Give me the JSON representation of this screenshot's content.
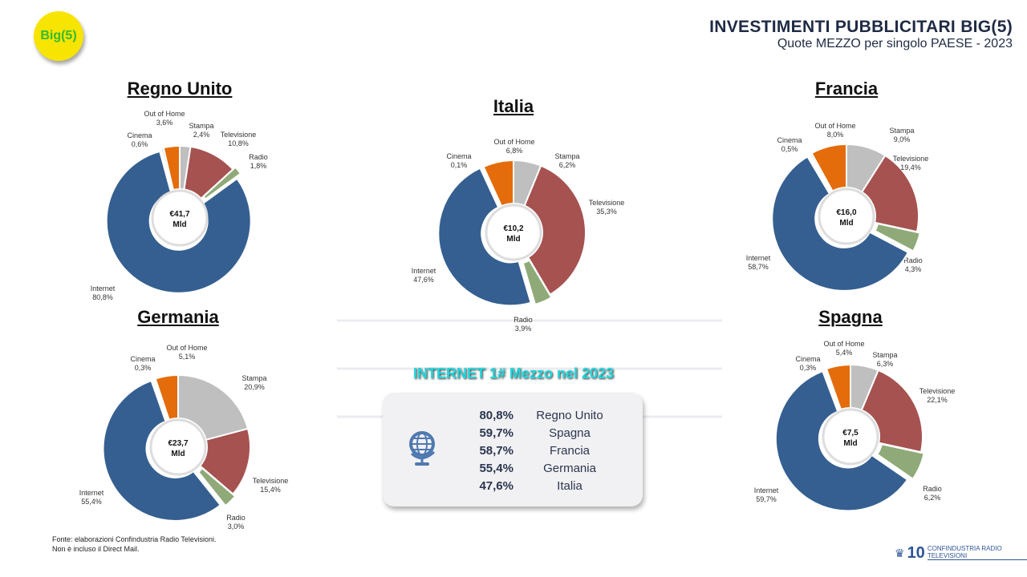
{
  "badge": "Big(5)",
  "header": {
    "title": "INVESTIMENTI PUBBLICITARI BIG(5)",
    "subtitle": "Quote MEZZO per singolo PAESE - 2023"
  },
  "watermark": [
    "CONFINDUSTRIA",
    "RADIO TELEVISIONI"
  ],
  "colors": {
    "Stampa": "#bfbfbf",
    "Televisione": "#a65250",
    "Radio": "#8faa78",
    "Internet": "#355f91",
    "Cinema": "#dfe6ef",
    "Out of Home": "#e46c0a"
  },
  "chart_data": [
    {
      "type": "pie",
      "title": "Regno Unito",
      "center": "€41,7\nMld",
      "categories": [
        "Stampa",
        "Televisione",
        "Radio",
        "Internet",
        "Cinema",
        "Out of Home"
      ],
      "values": [
        2.4,
        10.8,
        1.8,
        80.8,
        0.6,
        3.6
      ],
      "labels": [
        "2,4%",
        "10,8%",
        "1,8%",
        "80,8%",
        "0,6%",
        "3,6%"
      ]
    },
    {
      "type": "pie",
      "title": "Italia",
      "center": "€10,2\nMld",
      "categories": [
        "Stampa",
        "Televisione",
        "Radio",
        "Internet",
        "Cinema",
        "Out of Home"
      ],
      "values": [
        6.2,
        35.3,
        3.9,
        47.6,
        0.1,
        6.8
      ],
      "labels": [
        "6,2%",
        "35,3%",
        "3,9%",
        "47,6%",
        "0,1%",
        "6,8%"
      ]
    },
    {
      "type": "pie",
      "title": "Francia",
      "center": "€16,0\nMld",
      "categories": [
        "Stampa",
        "Televisione",
        "Radio",
        "Internet",
        "Cinema",
        "Out of Home"
      ],
      "values": [
        9.0,
        19.4,
        4.3,
        58.7,
        0.5,
        8.0
      ],
      "labels": [
        "9,0%",
        "19,4%",
        "4,3%",
        "58,7%",
        "0,5%",
        "8,0%"
      ]
    },
    {
      "type": "pie",
      "title": "Germania",
      "center": "€23,7\nMld",
      "categories": [
        "Stampa",
        "Televisione",
        "Radio",
        "Internet",
        "Cinema",
        "Out of Home"
      ],
      "values": [
        20.9,
        15.4,
        3.0,
        55.4,
        0.3,
        5.1
      ],
      "labels": [
        "20,9%",
        "15,4%",
        "3,0%",
        "55,4%",
        "0,3%",
        "5,1%"
      ]
    },
    {
      "type": "pie",
      "title": "Spagna",
      "center": "€7,5\nMld",
      "categories": [
        "Stampa",
        "Televisione",
        "Radio",
        "Internet",
        "Cinema",
        "Out of Home"
      ],
      "values": [
        6.3,
        22.1,
        6.2,
        59.7,
        0.3,
        5.4
      ],
      "labels": [
        "6,3%",
        "22,1%",
        "6,2%",
        "59,7%",
        "0,3%",
        "5,4%"
      ]
    }
  ],
  "summary": {
    "title": "INTERNET 1# Mezzo nel 2023",
    "rows": [
      {
        "pct": "80,8%",
        "country": "Regno Unito"
      },
      {
        "pct": "59,7%",
        "country": "Spagna"
      },
      {
        "pct": "58,7%",
        "country": "Francia"
      },
      {
        "pct": "55,4%",
        "country": "Germania"
      },
      {
        "pct": "47,6%",
        "country": "Italia"
      }
    ]
  },
  "footnote": [
    "Fonte: elaborazioni Confindustria Radio Televisioni.",
    "Non è incluso il Direct Mail."
  ],
  "logo": {
    "number": "10",
    "text": "CONFINDUSTRIA RADIO TELEVISIONI"
  }
}
